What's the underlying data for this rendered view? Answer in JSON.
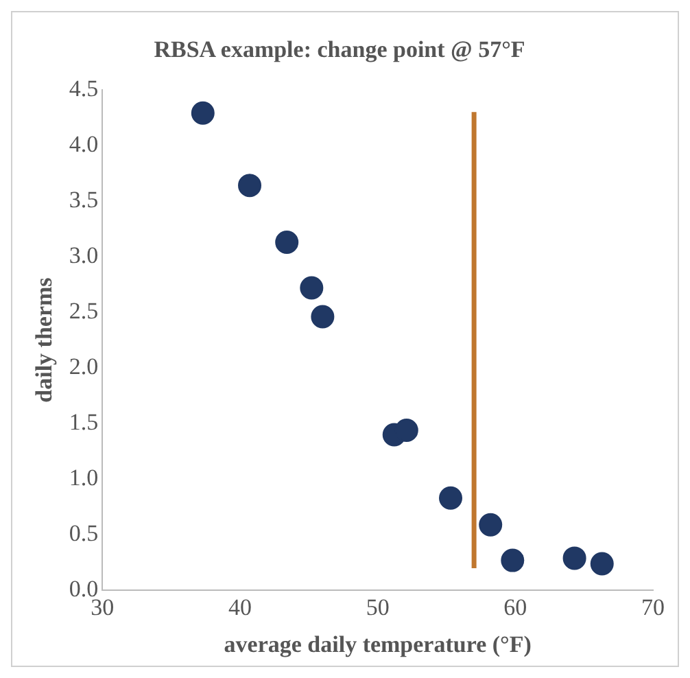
{
  "chart_data": {
    "type": "scatter",
    "title": "RBSA example: change point @ 57°F",
    "xlabel": "average daily temperature (°F)",
    "ylabel": "daily therms",
    "xlim": [
      30,
      70
    ],
    "xticks": [
      30,
      40,
      50,
      60,
      70
    ],
    "ylim": [
      0,
      4.5
    ],
    "yticks": [
      {
        "value": 0,
        "label": "0.0"
      },
      {
        "value": 0.5,
        "label": "0.5"
      },
      {
        "value": 1,
        "label": "1.0"
      },
      {
        "value": 1.5,
        "label": "1.5"
      },
      {
        "value": 2,
        "label": "2.0"
      },
      {
        "value": 2.5,
        "label": "2.5"
      },
      {
        "value": 3,
        "label": "3.0"
      },
      {
        "value": 3.5,
        "label": "3.5"
      },
      {
        "value": 4,
        "label": "4.0"
      },
      {
        "value": 4.5,
        "label": "4.5"
      }
    ],
    "grid": false,
    "series": [
      {
        "type": "scatter",
        "marker": "circle",
        "color": "#203864",
        "x": [
          37.3,
          40.7,
          43.4,
          45.2,
          46.0,
          51.2,
          52.1,
          55.3,
          58.2,
          59.8,
          64.3,
          66.3
        ],
        "values": [
          4.29,
          3.64,
          3.13,
          2.72,
          2.46,
          1.4,
          1.44,
          0.83,
          0.59,
          0.27,
          0.29,
          0.24
        ]
      },
      {
        "type": "line",
        "marker": "none",
        "color": "#c0772f",
        "line_style": "solid",
        "x": [
          57,
          57
        ],
        "values": [
          0.2,
          4.3
        ]
      }
    ]
  }
}
